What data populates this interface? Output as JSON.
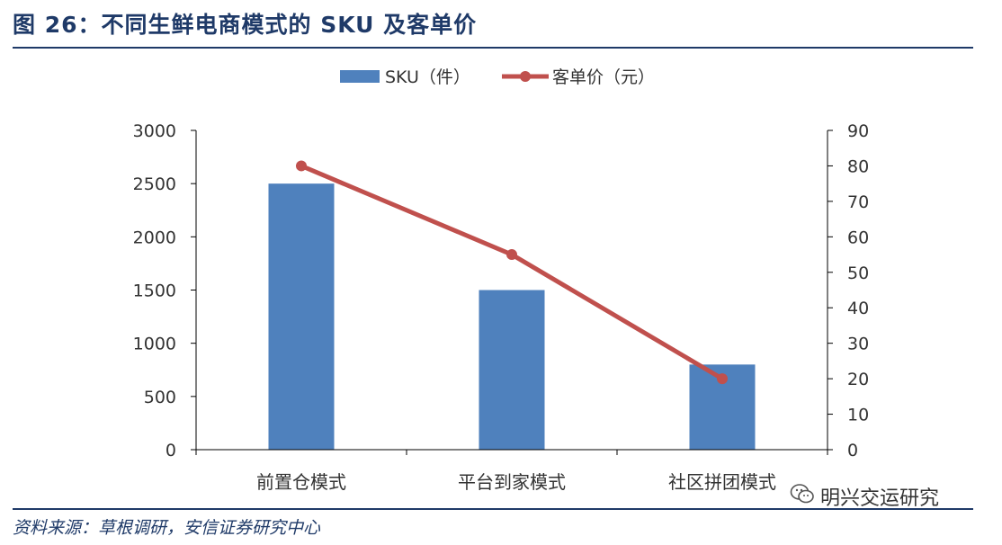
{
  "title": "图 26：不同生鲜电商模式的 SKU 及客单价",
  "source": "资料来源：草根调研，安信证券研究中心",
  "watermark": {
    "text": "明兴交运研究",
    "icon": "wechat-icon"
  },
  "colors": {
    "bar": "#4f81bd",
    "line": "#c0504d",
    "title": "#1f3a68",
    "axis": "#333333"
  },
  "chart_data": {
    "type": "bar",
    "categories": [
      "前置仓模式",
      "平台到家模式",
      "社区拼团模式"
    ],
    "series": [
      {
        "name": "SKU（件）",
        "type": "bar",
        "axis": "left",
        "values": [
          2500,
          1500,
          800
        ]
      },
      {
        "name": "客单价（元）",
        "type": "line",
        "axis": "right",
        "values": [
          80,
          55,
          20
        ]
      }
    ],
    "y_left": {
      "min": 0,
      "max": 3000,
      "ticks": [
        "0",
        "500",
        "1000",
        "1500",
        "2000",
        "2500",
        "3000"
      ]
    },
    "y_right": {
      "min": 0,
      "max": 90,
      "ticks": [
        "0",
        "10",
        "20",
        "30",
        "40",
        "50",
        "60",
        "70",
        "80",
        "90"
      ]
    },
    "legend": "top-center",
    "grid": false
  }
}
